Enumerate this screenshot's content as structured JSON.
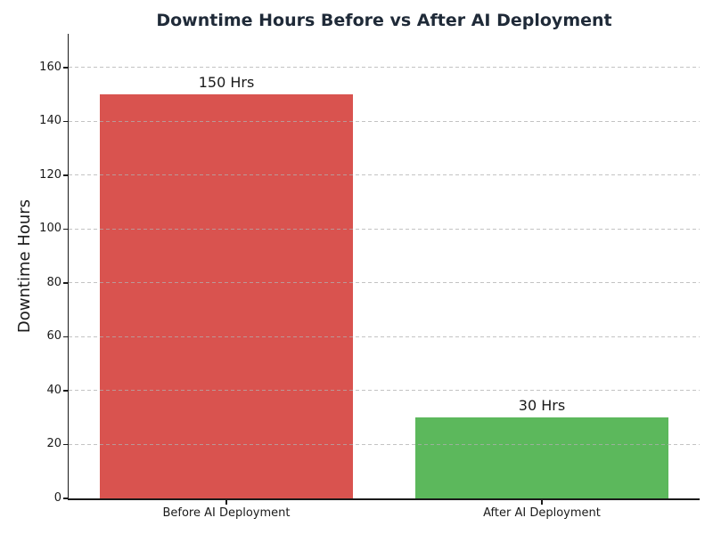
{
  "chart_data": {
    "type": "bar",
    "title": "Downtime Hours Before vs After AI Deployment",
    "xlabel": "",
    "ylabel": "Downtime Hours",
    "categories": [
      "Before AI Deployment",
      "After AI Deployment"
    ],
    "values": [
      150,
      30
    ],
    "bar_labels": [
      "150 Hrs",
      "30 Hrs"
    ],
    "bar_colors": [
      "#d9534f",
      "#5cb85c"
    ],
    "ylim": [
      0,
      172.5
    ],
    "yticks": [
      0,
      20,
      40,
      60,
      80,
      100,
      120,
      140,
      160
    ],
    "grid": "horizontal dashed, drawn over bars",
    "legend": "none",
    "title_color": "#1f2a38",
    "axis_color": "#1a1a1a",
    "grid_color": "#afafaf",
    "background_color": "#ffffff"
  }
}
